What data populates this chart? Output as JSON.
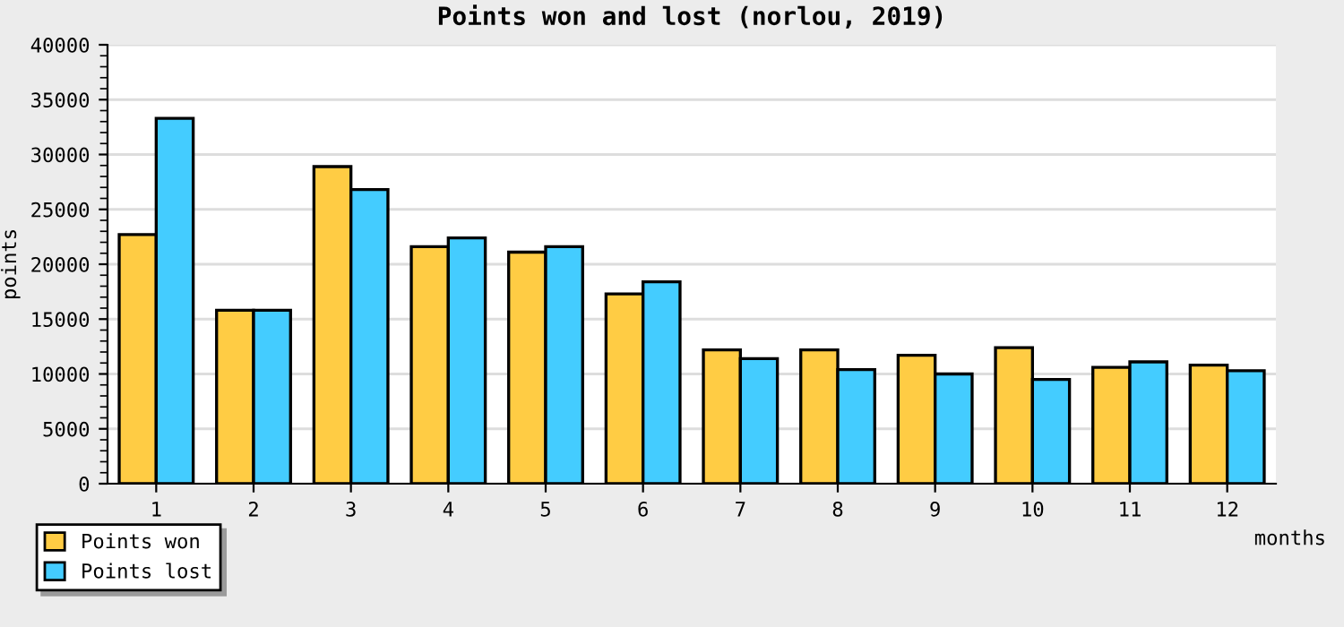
{
  "chart_data": {
    "type": "bar",
    "title": "Points won and lost (norlou, 2019)",
    "xlabel": "months",
    "ylabel": "points",
    "categories": [
      "1",
      "2",
      "3",
      "4",
      "5",
      "6",
      "7",
      "8",
      "9",
      "10",
      "11",
      "12"
    ],
    "series": [
      {
        "name": "Points won",
        "color": "#ffcc44",
        "values": [
          22700,
          15800,
          28900,
          21600,
          21100,
          17300,
          12200,
          12200,
          11700,
          12400,
          10600,
          10800
        ]
      },
      {
        "name": "Points lost",
        "color": "#44ccff",
        "values": [
          33300,
          15800,
          26800,
          22400,
          21600,
          18400,
          11400,
          10400,
          10000,
          9500,
          11100,
          10300
        ]
      }
    ],
    "ylim": [
      0,
      40000
    ],
    "yticks": [
      0,
      5000,
      10000,
      15000,
      20000,
      25000,
      30000,
      35000,
      40000
    ],
    "grid": "y",
    "legend": "bottom left"
  }
}
